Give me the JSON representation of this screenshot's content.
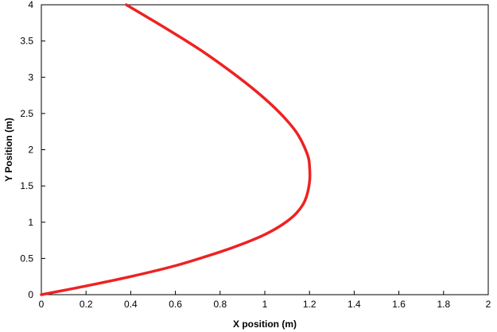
{
  "chart_data": {
    "type": "line",
    "title": "",
    "xlabel": "X position (m)",
    "ylabel": "Y Position (m)",
    "xlim": [
      0,
      2
    ],
    "ylim": [
      0,
      4
    ],
    "xticks": [
      0,
      0.2,
      0.4,
      0.6,
      0.8,
      1,
      1.2,
      1.4,
      1.6,
      1.8,
      2
    ],
    "yticks": [
      0,
      0.5,
      1,
      1.5,
      2,
      2.5,
      3,
      3.5,
      4
    ],
    "xtick_labels": [
      "0",
      "0.2",
      "0.4",
      "0.6",
      "0.8",
      "1",
      "1.2",
      "1.4",
      "1.6",
      "1.8",
      "2"
    ],
    "ytick_labels": [
      "0",
      "0.5",
      "1",
      "1.5",
      "2",
      "2.5",
      "3",
      "3.5",
      "4"
    ],
    "grid": false,
    "legend": "none",
    "series": [
      {
        "color": "#ee2222",
        "x": [
          0,
          0.2,
          0.4,
          0.6,
          0.8,
          0.9,
          1.0,
          1.08,
          1.14,
          1.18,
          1.2,
          1.2,
          1.19,
          1.15,
          1.1,
          1.03,
          0.94,
          0.83,
          0.71,
          0.56,
          0.38
        ],
        "y": [
          0,
          0.12,
          0.25,
          0.4,
          0.59,
          0.7,
          0.83,
          0.97,
          1.12,
          1.3,
          1.55,
          1.78,
          1.94,
          2.2,
          2.4,
          2.62,
          2.86,
          3.12,
          3.38,
          3.67,
          4.0
        ]
      }
    ]
  }
}
